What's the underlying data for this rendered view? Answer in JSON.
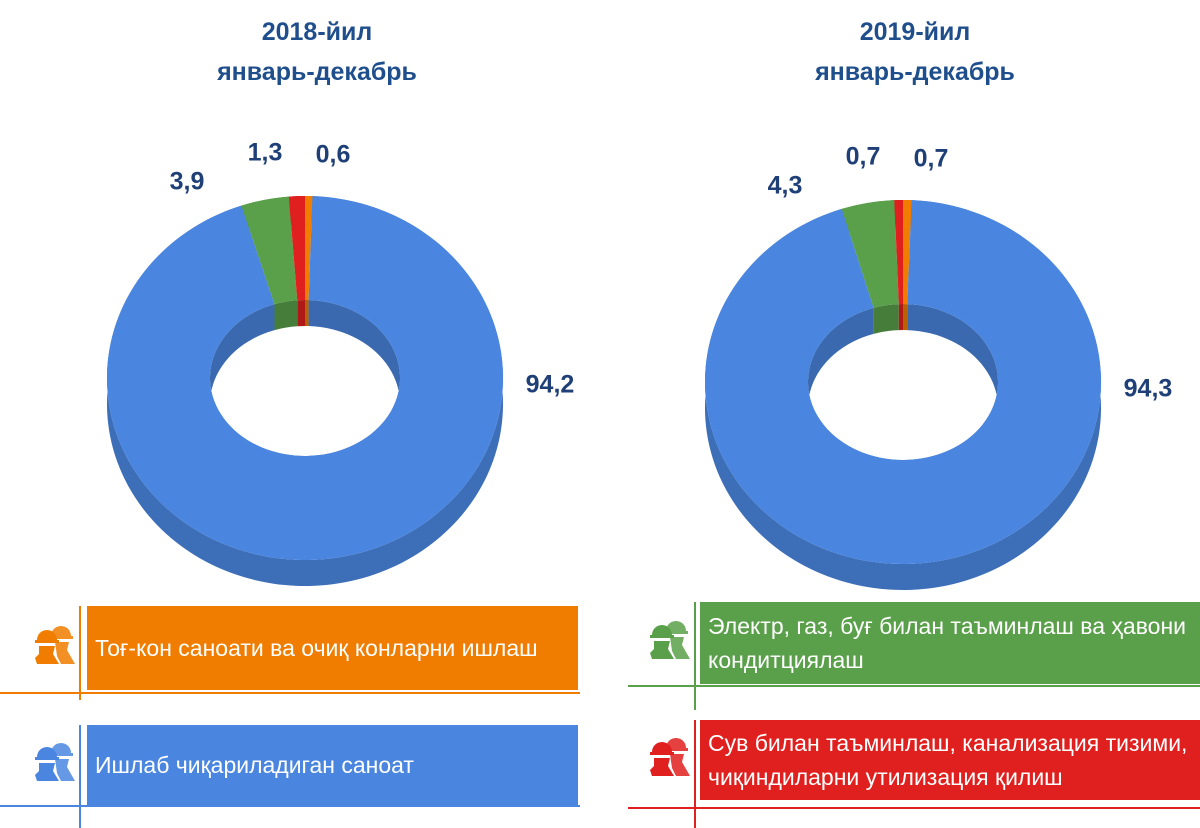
{
  "chart_data": [
    {
      "type": "pie",
      "title": "2018-йил",
      "subtitle": "январь-декабрь",
      "values": [
        0.6,
        94.2,
        3.9,
        1.3
      ],
      "value_labels": [
        "0,6",
        "94,2",
        "3,9",
        "1,3"
      ],
      "colors": [
        "#f07d00",
        "#4a86e0",
        "#5aa04a",
        "#e0201e"
      ]
    },
    {
      "type": "pie",
      "title": "2019-йил",
      "subtitle": "январь-декабрь",
      "values": [
        0.7,
        94.3,
        4.3,
        0.7
      ],
      "value_labels": [
        "0,7",
        "94,3",
        "4,3",
        "0,7"
      ],
      "colors": [
        "#f07d00",
        "#4a86e0",
        "#5aa04a",
        "#e0201e"
      ]
    }
  ],
  "legend": {
    "items": [
      {
        "name": "Тоғ-кон саноати ва очиқ конларни ишлаш",
        "color": "#f07d00"
      },
      {
        "name": "Ишлаб чиқариладиган саноат",
        "color": "#4a86e0"
      },
      {
        "name": "Электр, газ, буғ билан таъминлаш ва ҳавони кондитциялаш",
        "color": "#5aa04a"
      },
      {
        "name": "Сув билан таъминлаш, канализация тизими, чиқиндиларни утилизация қилиш",
        "color": "#e0201e"
      }
    ]
  }
}
